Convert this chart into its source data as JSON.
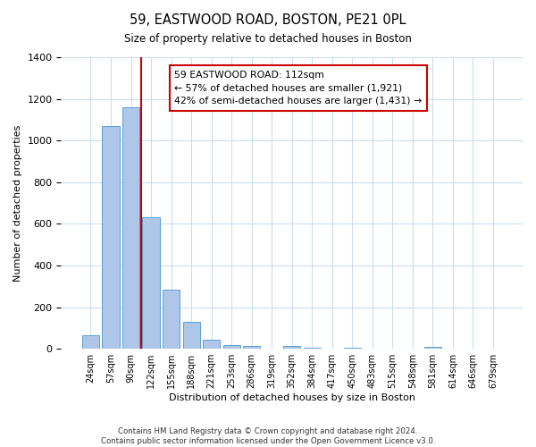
{
  "title": "59, EASTWOOD ROAD, BOSTON, PE21 0PL",
  "subtitle": "Size of property relative to detached houses in Boston",
  "xlabel": "Distribution of detached houses by size in Boston",
  "ylabel": "Number of detached properties",
  "footnote1": "Contains HM Land Registry data © Crown copyright and database right 2024.",
  "footnote2": "Contains public sector information licensed under the Open Government Licence v3.0.",
  "bar_labels": [
    "24sqm",
    "57sqm",
    "90sqm",
    "122sqm",
    "155sqm",
    "188sqm",
    "221sqm",
    "253sqm",
    "286sqm",
    "319sqm",
    "352sqm",
    "384sqm",
    "417sqm",
    "450sqm",
    "483sqm",
    "515sqm",
    "548sqm",
    "581sqm",
    "614sqm",
    "646sqm",
    "679sqm"
  ],
  "bar_values": [
    65,
    1070,
    1160,
    630,
    285,
    130,
    45,
    20,
    15,
    0,
    15,
    5,
    0,
    5,
    0,
    0,
    0,
    10,
    0,
    0,
    0
  ],
  "bar_color": "#aec6e8",
  "bar_edgecolor": "#5a9fd4",
  "ylim": [
    0,
    1400
  ],
  "yticks": [
    0,
    200,
    400,
    600,
    800,
    1000,
    1200,
    1400
  ],
  "vline_index": 3,
  "vline_color": "#cc0000",
  "annotation_title": "59 EASTWOOD ROAD: 112sqm",
  "annotation_line1": "← 57% of detached houses are smaller (1,921)",
  "annotation_line2": "42% of semi-detached houses are larger (1,431) →",
  "annotation_box_color": "#ffffff",
  "annotation_box_edgecolor": "#cc0000",
  "background_color": "#ffffff",
  "grid_color": "#ccddee"
}
